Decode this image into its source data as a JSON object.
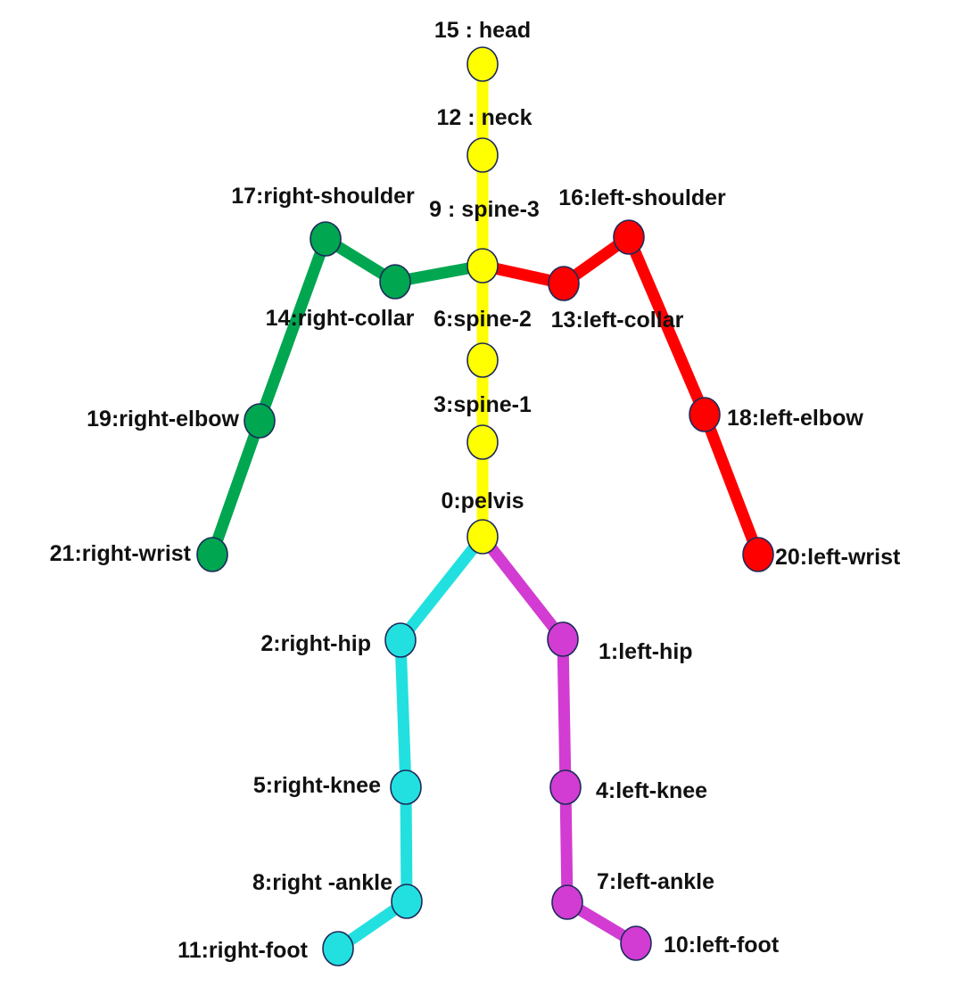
{
  "colors": {
    "spine": "#ffff00",
    "right_arm": "#00a650",
    "left_arm": "#ff0000",
    "right_leg": "#22e0e0",
    "left_leg": "#d23cd2",
    "outline": "#1d2a5a"
  },
  "joints": [
    {
      "id": "head",
      "group": "spine",
      "label": "15 : head"
    },
    {
      "id": "neck",
      "group": "spine",
      "label": "12 : neck"
    },
    {
      "id": "spine3",
      "group": "spine",
      "label": "9 : spine-3"
    },
    {
      "id": "spine2",
      "group": "spine",
      "label": "6:spine-2"
    },
    {
      "id": "spine1",
      "group": "spine",
      "label": "3:spine-1"
    },
    {
      "id": "pelvis",
      "group": "spine",
      "label": "0:pelvis"
    },
    {
      "id": "right_shoulder",
      "group": "right_arm",
      "label": "17:right-shoulder"
    },
    {
      "id": "right_collar",
      "group": "right_arm",
      "label": "14:right-collar"
    },
    {
      "id": "right_elbow",
      "group": "right_arm",
      "label": "19:right-elbow"
    },
    {
      "id": "right_wrist",
      "group": "right_arm",
      "label": "21:right-wrist"
    },
    {
      "id": "left_shoulder",
      "group": "left_arm",
      "label": "16:left-shoulder"
    },
    {
      "id": "left_collar",
      "group": "left_arm",
      "label": "13:left-collar"
    },
    {
      "id": "left_elbow",
      "group": "left_arm",
      "label": "18:left-elbow"
    },
    {
      "id": "left_wrist",
      "group": "left_arm",
      "label": "20:left-wrist"
    },
    {
      "id": "right_hip",
      "group": "right_leg",
      "label": "2:right-hip"
    },
    {
      "id": "right_knee",
      "group": "right_leg",
      "label": "5:right-knee"
    },
    {
      "id": "right_ankle",
      "group": "right_leg",
      "label": "8:right -ankle"
    },
    {
      "id": "right_foot",
      "group": "right_leg",
      "label": "11:right-foot"
    },
    {
      "id": "left_hip",
      "group": "left_leg",
      "label": "1:left-hip"
    },
    {
      "id": "left_knee",
      "group": "left_leg",
      "label": "4:left-knee"
    },
    {
      "id": "left_ankle",
      "group": "left_leg",
      "label": "7:left-ankle"
    },
    {
      "id": "left_foot",
      "group": "left_leg",
      "label": "10:left-foot"
    }
  ],
  "bones": [
    {
      "from": "head",
      "to": "neck",
      "group": "spine"
    },
    {
      "from": "neck",
      "to": "spine3",
      "group": "spine"
    },
    {
      "from": "spine3",
      "to": "spine2",
      "group": "spine"
    },
    {
      "from": "spine2",
      "to": "spine1",
      "group": "spine"
    },
    {
      "from": "spine1",
      "to": "pelvis",
      "group": "spine"
    },
    {
      "from": "spine3",
      "to": "right_collar",
      "group": "right_arm"
    },
    {
      "from": "right_collar",
      "to": "right_shoulder",
      "group": "right_arm"
    },
    {
      "from": "right_shoulder",
      "to": "right_elbow",
      "group": "right_arm"
    },
    {
      "from": "right_elbow",
      "to": "right_wrist",
      "group": "right_arm"
    },
    {
      "from": "spine3",
      "to": "left_collar",
      "group": "left_arm"
    },
    {
      "from": "left_collar",
      "to": "left_shoulder",
      "group": "left_arm"
    },
    {
      "from": "left_shoulder",
      "to": "left_elbow",
      "group": "left_arm"
    },
    {
      "from": "left_elbow",
      "to": "left_wrist",
      "group": "left_arm"
    },
    {
      "from": "pelvis",
      "to": "right_hip",
      "group": "right_leg"
    },
    {
      "from": "right_hip",
      "to": "right_knee",
      "group": "right_leg"
    },
    {
      "from": "right_knee",
      "to": "right_ankle",
      "group": "right_leg"
    },
    {
      "from": "right_ankle",
      "to": "right_foot",
      "group": "right_leg"
    },
    {
      "from": "pelvis",
      "to": "left_hip",
      "group": "left_leg"
    },
    {
      "from": "left_hip",
      "to": "left_knee",
      "group": "left_leg"
    },
    {
      "from": "left_knee",
      "to": "left_ankle",
      "group": "left_leg"
    },
    {
      "from": "left_ankle",
      "to": "left_foot",
      "group": "left_leg"
    }
  ]
}
